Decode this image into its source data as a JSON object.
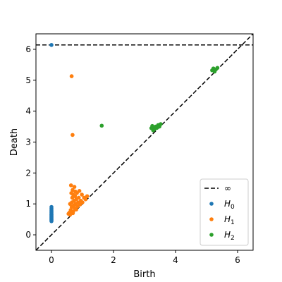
{
  "chart_data": {
    "type": "scatter",
    "xlabel": "Birth",
    "ylabel": "Death",
    "xlim": [
      -0.5,
      6.5
    ],
    "ylim": [
      -0.5,
      6.5
    ],
    "xticks": [
      0,
      2,
      4,
      6
    ],
    "yticks": [
      0,
      1,
      2,
      3,
      4,
      5,
      6
    ],
    "grid": false,
    "legend_position": "bottom-right",
    "infinity_line": {
      "y": 6.14,
      "label": "∞"
    },
    "diagonal": true,
    "series": [
      {
        "name": "H",
        "subscript": "0",
        "color": "#1f77b4",
        "points": [
          [
            0,
            6.14
          ],
          [
            0,
            0.9
          ],
          [
            0,
            0.85
          ],
          [
            0,
            0.8
          ],
          [
            0,
            0.76
          ],
          [
            0,
            0.72
          ],
          [
            0,
            0.68
          ],
          [
            0,
            0.65
          ],
          [
            0,
            0.62
          ],
          [
            0,
            0.59
          ],
          [
            0,
            0.56
          ],
          [
            0,
            0.53
          ],
          [
            0,
            0.5
          ],
          [
            0,
            0.47
          ],
          [
            0,
            0.44
          ]
        ]
      },
      {
        "name": "H",
        "subscript": "1",
        "color": "#ff7f0e",
        "points": [
          [
            0.65,
            5.13
          ],
          [
            0.68,
            3.23
          ],
          [
            0.55,
            0.68
          ],
          [
            0.58,
            0.72
          ],
          [
            0.6,
            0.65
          ],
          [
            0.62,
            0.8
          ],
          [
            0.63,
            1.6
          ],
          [
            0.65,
            0.9
          ],
          [
            0.66,
            1.05
          ],
          [
            0.67,
            1.2
          ],
          [
            0.68,
            1.45
          ],
          [
            0.7,
            1.3
          ],
          [
            0.7,
            0.75
          ],
          [
            0.72,
            0.95
          ],
          [
            0.73,
            1.1
          ],
          [
            0.74,
            1.55
          ],
          [
            0.75,
            0.85
          ],
          [
            0.76,
            1.25
          ],
          [
            0.78,
            1.0
          ],
          [
            0.8,
            0.82
          ],
          [
            0.8,
            1.15
          ],
          [
            0.82,
            1.35
          ],
          [
            0.84,
            0.92
          ],
          [
            0.86,
            1.05
          ],
          [
            0.88,
            1.2
          ],
          [
            0.9,
            1.42
          ],
          [
            0.92,
            0.98
          ],
          [
            0.95,
            1.1
          ],
          [
            0.98,
            1.3
          ],
          [
            1.0,
            1.05
          ],
          [
            1.05,
            1.2
          ],
          [
            1.1,
            1.15
          ],
          [
            1.15,
            1.25
          ],
          [
            0.6,
            1.0
          ],
          [
            0.64,
            1.35
          ],
          [
            0.69,
            0.7
          ],
          [
            0.77,
            1.4
          ]
        ]
      },
      {
        "name": "H",
        "subscript": "2",
        "color": "#2ca02c",
        "points": [
          [
            1.62,
            3.53
          ],
          [
            3.22,
            3.45
          ],
          [
            3.25,
            3.52
          ],
          [
            3.28,
            3.38
          ],
          [
            3.3,
            3.48
          ],
          [
            3.33,
            3.42
          ],
          [
            3.36,
            3.5
          ],
          [
            3.4,
            3.46
          ],
          [
            3.44,
            3.55
          ],
          [
            3.48,
            3.5
          ],
          [
            3.52,
            3.58
          ],
          [
            5.18,
            5.32
          ],
          [
            5.22,
            5.38
          ],
          [
            5.26,
            5.28
          ],
          [
            5.3,
            5.35
          ],
          [
            5.35,
            5.4
          ]
        ]
      }
    ]
  }
}
